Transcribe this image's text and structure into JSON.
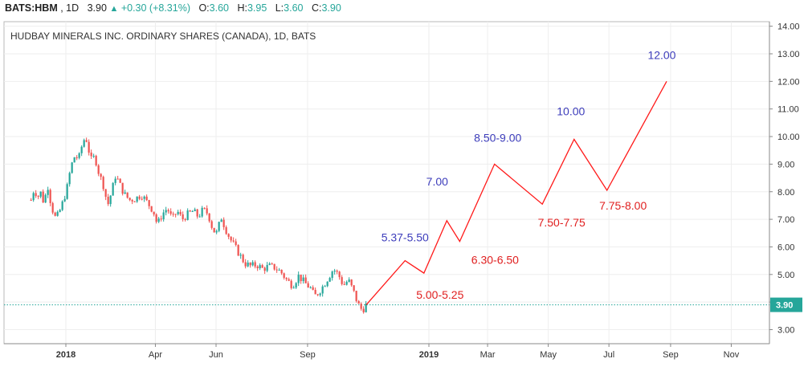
{
  "header": {
    "symbol": "BATS:HBM",
    "interval": "1D",
    "last": "3.90",
    "change_icon": "triangle-up-icon",
    "change": "+0.30 (+8.31%)",
    "open_label": "O:",
    "open": "3.60",
    "high_label": "H:",
    "high": "3.95",
    "low_label": "L:",
    "low": "3.60",
    "close_label": "C:",
    "close": "3.90"
  },
  "title": "HUDBAY MINERALS INC. ORDINARY SHARES (CANADA), 1D, BATS",
  "colors": {
    "up": "#26a69a",
    "down": "#ef5350",
    "projection": "#ff1a1a",
    "label_blue": "#3d3dbb",
    "label_red": "#e02020",
    "price_line": "#26a69a",
    "grid": "#eeeeee"
  },
  "chart_data": {
    "type": "candlestick",
    "ylim": [
      2.5,
      14.2
    ],
    "y_ticks": [
      "3.00",
      "4.00",
      "5.00",
      "6.00",
      "7.00",
      "8.00",
      "9.00",
      "10.00",
      "11.00",
      "12.00",
      "13.00",
      "14.00"
    ],
    "x_ticks": [
      "2018",
      "Apr",
      "Jun",
      "Sep",
      "2019",
      "Mar",
      "May",
      "Jul",
      "Sep",
      "Nov"
    ],
    "price_series": [
      [
        "2017-11-27",
        7.7
      ],
      [
        "2017-11-30",
        8.1
      ],
      [
        "2017-12-04",
        7.8
      ],
      [
        "2017-12-06",
        8.15
      ],
      [
        "2017-12-08",
        7.6
      ],
      [
        "2017-12-12",
        7.9
      ],
      [
        "2017-12-14",
        8.2
      ],
      [
        "2017-12-16",
        7.75
      ],
      [
        "2017-12-19",
        7.3
      ],
      [
        "2017-12-22",
        7.0
      ],
      [
        "2017-12-27",
        7.4
      ],
      [
        "2018-01-02",
        8.1
      ],
      [
        "2018-01-06",
        8.9
      ],
      [
        "2018-01-10",
        9.3
      ],
      [
        "2018-01-14",
        9.2
      ],
      [
        "2018-01-18",
        9.8
      ],
      [
        "2018-01-21",
        10.0
      ],
      [
        "2018-01-24",
        9.5
      ],
      [
        "2018-01-27",
        9.1
      ],
      [
        "2018-01-30",
        9.3
      ],
      [
        "2018-02-03",
        8.7
      ],
      [
        "2018-02-08",
        8.2
      ],
      [
        "2018-02-12",
        7.5
      ],
      [
        "2018-02-16",
        8.0
      ],
      [
        "2018-02-20",
        8.6
      ],
      [
        "2018-02-25",
        8.2
      ],
      [
        "2018-03-01",
        7.9
      ],
      [
        "2018-03-06",
        7.7
      ],
      [
        "2018-03-12",
        7.75
      ],
      [
        "2018-03-18",
        7.9
      ],
      [
        "2018-03-24",
        7.6
      ],
      [
        "2018-03-30",
        7.3
      ],
      [
        "2018-04-03",
        6.8
      ],
      [
        "2018-04-08",
        7.2
      ],
      [
        "2018-04-13",
        7.4
      ],
      [
        "2018-04-18",
        7.0
      ],
      [
        "2018-04-23",
        7.3
      ],
      [
        "2018-04-28",
        7.0
      ],
      [
        "2018-05-04",
        7.2
      ],
      [
        "2018-05-09",
        7.3
      ],
      [
        "2018-05-14",
        7.1
      ],
      [
        "2018-05-19",
        7.35
      ],
      [
        "2018-05-24",
        7.2
      ],
      [
        "2018-05-29",
        6.6
      ],
      [
        "2018-06-02",
        6.5
      ],
      [
        "2018-06-06",
        7.1
      ],
      [
        "2018-06-10",
        6.7
      ],
      [
        "2018-06-15",
        6.3
      ],
      [
        "2018-06-20",
        6.0
      ],
      [
        "2018-06-25",
        5.7
      ],
      [
        "2018-06-30",
        5.4
      ],
      [
        "2018-07-06",
        5.3
      ],
      [
        "2018-07-12",
        5.35
      ],
      [
        "2018-07-18",
        5.2
      ],
      [
        "2018-07-24",
        5.3
      ],
      [
        "2018-07-30",
        5.25
      ],
      [
        "2018-08-05",
        5.1
      ],
      [
        "2018-08-11",
        4.8
      ],
      [
        "2018-08-17",
        4.6
      ],
      [
        "2018-08-23",
        4.95
      ],
      [
        "2018-08-29",
        4.7
      ],
      [
        "2018-09-04",
        4.5
      ],
      [
        "2018-09-08",
        4.2
      ],
      [
        "2018-09-12",
        4.35
      ],
      [
        "2018-09-17",
        4.6
      ],
      [
        "2018-09-22",
        4.9
      ],
      [
        "2018-09-27",
        5.2
      ],
      [
        "2018-10-02",
        5.0
      ],
      [
        "2018-10-07",
        4.6
      ],
      [
        "2018-10-12",
        4.8
      ],
      [
        "2018-10-17",
        4.4
      ],
      [
        "2018-10-22",
        3.9
      ],
      [
        "2018-10-26",
        3.7
      ],
      [
        "2018-10-30",
        3.9
      ]
    ],
    "projection_path": [
      [
        "2018-10-30",
        3.9
      ],
      [
        "2018-12-08",
        5.5
      ],
      [
        "2018-12-27",
        5.05
      ],
      [
        "2019-01-19",
        6.95
      ],
      [
        "2019-02-01",
        6.2
      ],
      [
        "2019-03-08",
        9.0
      ],
      [
        "2019-04-25",
        7.55
      ],
      [
        "2019-05-27",
        9.9
      ],
      [
        "2019-06-29",
        8.05
      ],
      [
        "2019-08-28",
        12.0
      ]
    ],
    "annotations": [
      {
        "text": "5.37-5.50",
        "color": "blue"
      },
      {
        "text": "5.00-5.25",
        "color": "red"
      },
      {
        "text": "7.00",
        "color": "blue"
      },
      {
        "text": "6.30-6.50",
        "color": "red"
      },
      {
        "text": "8.50-9.00",
        "color": "blue"
      },
      {
        "text": "7.50-7.75",
        "color": "red"
      },
      {
        "text": "10.00",
        "color": "blue"
      },
      {
        "text": "7.75-8.00",
        "color": "red"
      },
      {
        "text": "12.00",
        "color": "blue"
      }
    ],
    "last_price": 3.9,
    "last_price_label": "3.90",
    "grid": true
  }
}
